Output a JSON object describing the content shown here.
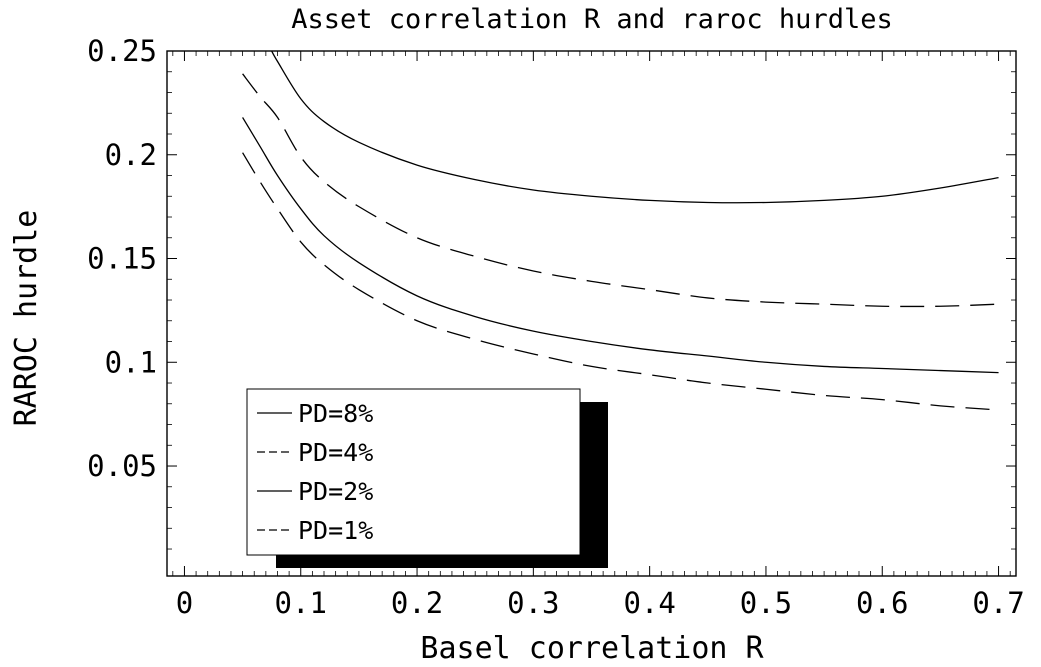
{
  "chart_data": {
    "type": "line",
    "title": "Asset correlation R and raroc hurdles",
    "xlabel": "Basel correlation R",
    "ylabel": "RAROC hurdle",
    "xlim": [
      -0.015,
      0.715
    ],
    "ylim": [
      -0.003,
      0.25
    ],
    "x_ticks": [
      0,
      0.1,
      0.2,
      0.3,
      0.4,
      0.5,
      0.6,
      0.7
    ],
    "x_tick_labels": [
      "0",
      "0.1",
      "0.2",
      "0.3",
      "0.4",
      "0.5",
      "0.6",
      "0.7"
    ],
    "y_ticks": [
      0.05,
      0.1,
      0.15,
      0.2,
      0.25
    ],
    "y_tick_labels": [
      "0.05",
      "0.1",
      "0.15",
      "0.2",
      "0.25"
    ],
    "grid": false,
    "legend_position": "bottom-left",
    "series": [
      {
        "name": "PD=8%",
        "style": "solid",
        "x": [
          0.075,
          0.08,
          0.1,
          0.12,
          0.15,
          0.2,
          0.25,
          0.3,
          0.35,
          0.4,
          0.45,
          0.5,
          0.55,
          0.6,
          0.65,
          0.7
        ],
        "y": [
          0.25,
          0.245,
          0.227,
          0.216,
          0.206,
          0.195,
          0.188,
          0.183,
          0.18,
          0.178,
          0.177,
          0.177,
          0.178,
          0.18,
          0.184,
          0.189
        ]
      },
      {
        "name": "PD=4%",
        "style": "dashed",
        "x": [
          0.05,
          0.065,
          0.08,
          0.1,
          0.12,
          0.15,
          0.2,
          0.25,
          0.3,
          0.35,
          0.4,
          0.45,
          0.5,
          0.55,
          0.6,
          0.65,
          0.7
        ],
        "y": [
          0.239,
          0.228,
          0.218,
          0.199,
          0.187,
          0.175,
          0.16,
          0.151,
          0.144,
          0.139,
          0.135,
          0.131,
          0.129,
          0.128,
          0.127,
          0.127,
          0.128
        ]
      },
      {
        "name": "PD=2%",
        "style": "solid",
        "x": [
          0.05,
          0.065,
          0.08,
          0.1,
          0.12,
          0.15,
          0.2,
          0.25,
          0.3,
          0.35,
          0.4,
          0.45,
          0.5,
          0.55,
          0.6,
          0.65,
          0.7
        ],
        "y": [
          0.218,
          0.204,
          0.19,
          0.174,
          0.161,
          0.148,
          0.132,
          0.122,
          0.115,
          0.11,
          0.106,
          0.103,
          0.1,
          0.098,
          0.097,
          0.096,
          0.095
        ]
      },
      {
        "name": "PD=1%",
        "style": "dashed",
        "x": [
          0.05,
          0.065,
          0.08,
          0.1,
          0.12,
          0.15,
          0.2,
          0.25,
          0.3,
          0.35,
          0.4,
          0.45,
          0.5,
          0.55,
          0.6,
          0.65,
          0.7
        ],
        "y": [
          0.201,
          0.187,
          0.174,
          0.158,
          0.147,
          0.135,
          0.12,
          0.111,
          0.104,
          0.098,
          0.094,
          0.09,
          0.087,
          0.084,
          0.082,
          0.079,
          0.077
        ]
      }
    ]
  }
}
